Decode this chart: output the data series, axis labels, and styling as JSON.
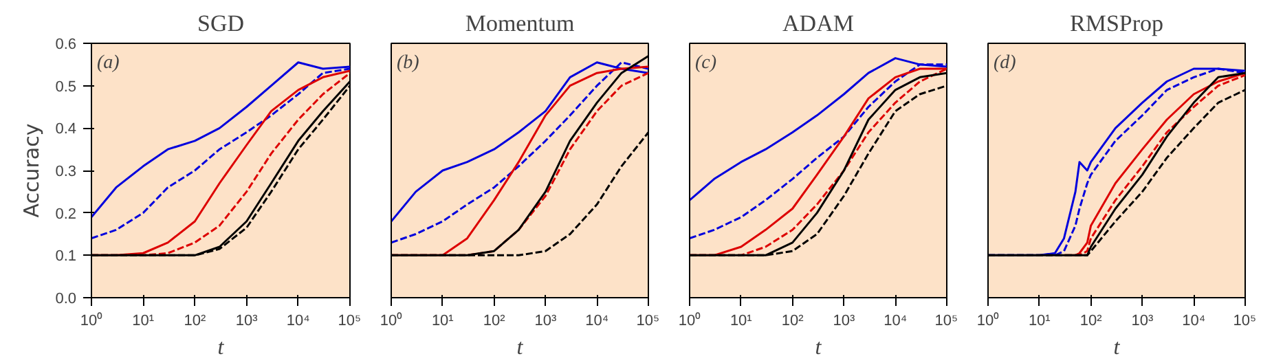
{
  "chart_data": [
    {
      "type": "line",
      "title": "SGD",
      "xlabel": "t",
      "ylabel": "Accuracy",
      "annotations": [
        "(a)"
      ],
      "log": "x",
      "grid": false,
      "x": [
        1,
        3,
        10,
        30,
        100,
        300,
        1000,
        3000,
        10000,
        30000,
        100000
      ],
      "xlim": [
        1,
        100000
      ],
      "xticks": [
        {
          "value": 1,
          "label": "10⁰"
        },
        {
          "value": 10,
          "label": "10¹"
        },
        {
          "value": 100,
          "label": "10²"
        },
        {
          "value": 1000,
          "label": "10³"
        },
        {
          "value": 10000,
          "label": "10⁴"
        },
        {
          "value": 100000,
          "label": "10⁵"
        }
      ],
      "ylim": [
        0,
        0.6
      ],
      "yticks": [
        {
          "value": 0,
          "label": "0.0"
        },
        0.1,
        0.2,
        0.3,
        0.4,
        0.5,
        0.6
      ],
      "series": [
        {
          "color": "#0000dd",
          "line_style": "solid",
          "values": [
            0.19,
            0.26,
            0.31,
            0.35,
            0.37,
            0.4,
            0.45,
            0.5,
            0.555,
            0.54,
            0.545
          ]
        },
        {
          "color": "#0000dd",
          "line_style": "dashed",
          "values": [
            0.14,
            0.16,
            0.2,
            0.26,
            0.3,
            0.35,
            0.39,
            0.43,
            0.48,
            0.53,
            0.54
          ]
        },
        {
          "color": "#dd0000",
          "line_style": "solid",
          "values": [
            0.1,
            0.1,
            0.105,
            0.13,
            0.18,
            0.27,
            0.36,
            0.44,
            0.49,
            0.52,
            0.535
          ]
        },
        {
          "color": "#dd0000",
          "line_style": "dashed",
          "values": [
            0.1,
            0.1,
            0.1,
            0.105,
            0.13,
            0.17,
            0.25,
            0.34,
            0.42,
            0.48,
            0.53
          ]
        },
        {
          "color": "#000000",
          "line_style": "solid",
          "values": [
            0.1,
            0.1,
            0.1,
            0.1,
            0.1,
            0.12,
            0.18,
            0.27,
            0.37,
            0.44,
            0.51
          ]
        },
        {
          "color": "#000000",
          "line_style": "dashed",
          "values": [
            0.1,
            0.1,
            0.1,
            0.1,
            0.1,
            0.115,
            0.165,
            0.25,
            0.35,
            0.42,
            0.5
          ]
        }
      ]
    },
    {
      "type": "line",
      "title": "Momentum",
      "xlabel": "t",
      "annotations": [
        "(b)"
      ],
      "log": "x",
      "grid": false,
      "tick_labels": "x",
      "x": [
        1,
        3,
        10,
        30,
        100,
        300,
        1000,
        3000,
        10000,
        30000,
        100000
      ],
      "xlim": [
        1,
        100000
      ],
      "xticks": [
        {
          "value": 1,
          "label": "10⁰"
        },
        {
          "value": 10,
          "label": "10¹"
        },
        {
          "value": 100,
          "label": "10²"
        },
        {
          "value": 1000,
          "label": "10³"
        },
        {
          "value": 10000,
          "label": "10⁴"
        },
        {
          "value": 100000,
          "label": "10⁵"
        }
      ],
      "ylim": [
        0,
        0.6
      ],
      "series": [
        {
          "color": "#0000dd",
          "line_style": "solid",
          "values": [
            0.18,
            0.25,
            0.3,
            0.32,
            0.35,
            0.39,
            0.44,
            0.52,
            0.555,
            0.54,
            0.53
          ]
        },
        {
          "color": "#0000dd",
          "line_style": "dashed",
          "values": [
            0.13,
            0.15,
            0.18,
            0.22,
            0.26,
            0.31,
            0.37,
            0.43,
            0.5,
            0.555,
            0.54
          ]
        },
        {
          "color": "#dd0000",
          "line_style": "solid",
          "values": [
            0.1,
            0.1,
            0.1,
            0.14,
            0.23,
            0.32,
            0.43,
            0.5,
            0.53,
            0.54,
            0.545
          ]
        },
        {
          "color": "#dd0000",
          "line_style": "dashed",
          "values": [
            0.1,
            0.1,
            0.1,
            0.1,
            0.11,
            0.16,
            0.24,
            0.35,
            0.44,
            0.5,
            0.53
          ]
        },
        {
          "color": "#000000",
          "line_style": "solid",
          "values": [
            0.1,
            0.1,
            0.1,
            0.1,
            0.11,
            0.16,
            0.25,
            0.37,
            0.46,
            0.53,
            0.57
          ]
        },
        {
          "color": "#000000",
          "line_style": "dashed",
          "values": [
            0.1,
            0.1,
            0.1,
            0.1,
            0.1,
            0.1,
            0.11,
            0.15,
            0.22,
            0.31,
            0.39
          ]
        }
      ]
    },
    {
      "type": "line",
      "title": "ADAM",
      "xlabel": "t",
      "annotations": [
        "(c)"
      ],
      "log": "x",
      "grid": false,
      "tick_labels": "x",
      "x": [
        1,
        3,
        10,
        30,
        100,
        300,
        1000,
        3000,
        10000,
        30000,
        100000
      ],
      "xlim": [
        1,
        100000
      ],
      "xticks": [
        {
          "value": 1,
          "label": "10⁰"
        },
        {
          "value": 10,
          "label": "10¹"
        },
        {
          "value": 100,
          "label": "10²"
        },
        {
          "value": 1000,
          "label": "10³"
        },
        {
          "value": 10000,
          "label": "10⁴"
        },
        {
          "value": 100000,
          "label": "10⁵"
        }
      ],
      "ylim": [
        0,
        0.6
      ],
      "series": [
        {
          "color": "#0000dd",
          "line_style": "solid",
          "values": [
            0.23,
            0.28,
            0.32,
            0.35,
            0.39,
            0.43,
            0.48,
            0.53,
            0.565,
            0.55,
            0.545
          ]
        },
        {
          "color": "#0000dd",
          "line_style": "dashed",
          "values": [
            0.14,
            0.16,
            0.19,
            0.23,
            0.28,
            0.33,
            0.38,
            0.45,
            0.51,
            0.55,
            0.55
          ]
        },
        {
          "color": "#dd0000",
          "line_style": "solid",
          "values": [
            0.1,
            0.1,
            0.12,
            0.16,
            0.21,
            0.29,
            0.38,
            0.47,
            0.52,
            0.54,
            0.54
          ]
        },
        {
          "color": "#dd0000",
          "line_style": "dashed",
          "values": [
            0.1,
            0.1,
            0.1,
            0.12,
            0.16,
            0.22,
            0.3,
            0.39,
            0.46,
            0.51,
            0.54
          ]
        },
        {
          "color": "#000000",
          "line_style": "solid",
          "values": [
            0.1,
            0.1,
            0.1,
            0.1,
            0.13,
            0.2,
            0.3,
            0.42,
            0.49,
            0.52,
            0.53
          ]
        },
        {
          "color": "#000000",
          "line_style": "dashed",
          "values": [
            0.1,
            0.1,
            0.1,
            0.1,
            0.11,
            0.15,
            0.24,
            0.34,
            0.44,
            0.48,
            0.5
          ]
        }
      ]
    },
    {
      "type": "line",
      "title": "RMSProp",
      "xlabel": "t",
      "annotations": [
        "(d)"
      ],
      "log": "x",
      "grid": false,
      "tick_labels": "x",
      "x": [
        1,
        10,
        20,
        30,
        50,
        60,
        85,
        100,
        300,
        1000,
        3000,
        10000,
        30000,
        100000
      ],
      "xlim": [
        1,
        100000
      ],
      "xticks": [
        {
          "value": 1,
          "label": "10⁰"
        },
        {
          "value": 10,
          "label": "10¹"
        },
        {
          "value": 100,
          "label": "10²"
        },
        {
          "value": 1000,
          "label": "10³"
        },
        {
          "value": 10000,
          "label": "10⁴"
        },
        {
          "value": 100000,
          "label": "10⁵"
        }
      ],
      "ylim": [
        0,
        0.6
      ],
      "series": [
        {
          "color": "#0000dd",
          "line_style": "solid",
          "values": [
            0.1,
            0.1,
            0.105,
            0.14,
            0.25,
            0.32,
            0.3,
            0.32,
            0.4,
            0.46,
            0.51,
            0.54,
            0.54,
            0.535
          ]
        },
        {
          "color": "#0000dd",
          "line_style": "dashed",
          "values": [
            0.1,
            0.1,
            0.1,
            0.11,
            0.17,
            0.21,
            0.27,
            0.29,
            0.37,
            0.43,
            0.49,
            0.52,
            0.54,
            0.53
          ]
        },
        {
          "color": "#dd0000",
          "line_style": "solid",
          "x": [
            30,
            50,
            60,
            85,
            100,
            300,
            1000,
            3000,
            10000,
            30000,
            100000
          ],
          "values": [
            0.1,
            0.1,
            0.105,
            0.13,
            0.17,
            0.27,
            0.35,
            0.42,
            0.48,
            0.51,
            0.53
          ]
        },
        {
          "color": "#dd0000",
          "line_style": "dashed",
          "x": [
            50,
            60,
            85,
            100,
            300,
            1000,
            3000,
            10000,
            30000,
            100000
          ],
          "values": [
            0.1,
            0.1,
            0.11,
            0.14,
            0.23,
            0.31,
            0.39,
            0.45,
            0.5,
            0.525
          ]
        },
        {
          "color": "#000000",
          "line_style": "solid",
          "values": [
            0.1,
            0.1,
            0.1,
            0.1,
            0.1,
            0.1,
            0.1,
            0.12,
            0.21,
            0.29,
            0.38,
            0.46,
            0.52,
            0.53
          ]
        },
        {
          "color": "#000000",
          "line_style": "dashed",
          "values": [
            0.1,
            0.1,
            0.1,
            0.1,
            0.1,
            0.1,
            0.1,
            0.11,
            0.18,
            0.25,
            0.33,
            0.4,
            0.46,
            0.49
          ]
        }
      ]
    }
  ]
}
